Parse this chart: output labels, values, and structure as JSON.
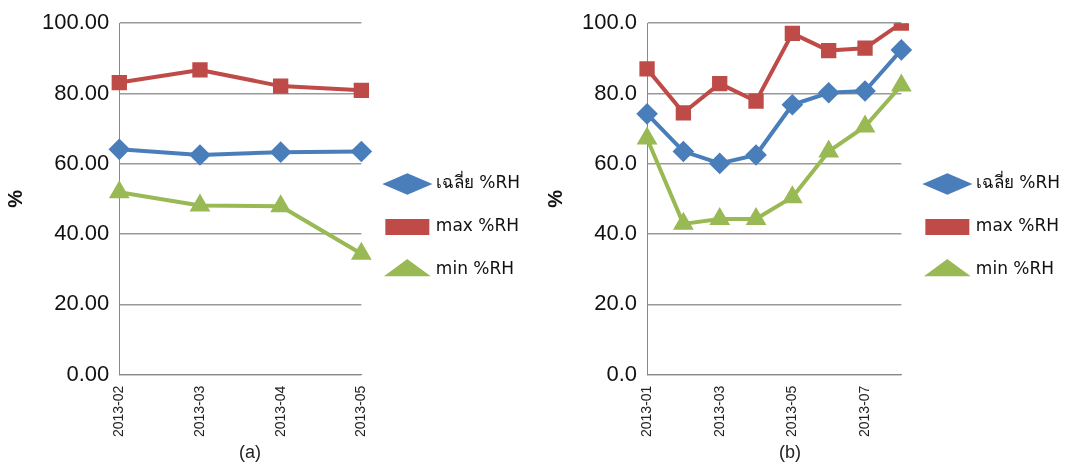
{
  "chart_data": [
    {
      "type": "line",
      "ylabel": "%",
      "annotations": [
        "(a)"
      ],
      "categories": [
        "2013-02",
        "2013-03",
        "2013-04",
        "2013-05"
      ],
      "series": [
        {
          "name": "เฉลี่ย %RH",
          "color": "#4a7ebb",
          "marker": "diamond",
          "values": [
            64.1,
            62.5,
            63.3,
            63.5
          ]
        },
        {
          "name": "max %RH",
          "color": "#be4b48",
          "marker": "square",
          "values": [
            83.1,
            86.7,
            82.1,
            80.9
          ]
        },
        {
          "name": "min %RH",
          "color": "#98b954",
          "marker": "triangle",
          "values": [
            51.9,
            48.1,
            47.9,
            34.4
          ]
        }
      ],
      "ylim": [
        0,
        100
      ],
      "yticks": [
        {
          "value": 0,
          "label": "0.00"
        },
        {
          "value": 20,
          "label": "20.00"
        },
        {
          "value": 40,
          "label": "40.00"
        },
        {
          "value": 60,
          "label": "60.00"
        },
        {
          "value": 80,
          "label": "80.00"
        },
        {
          "value": 100,
          "label": "100.00"
        }
      ],
      "grid": "y",
      "legend": "right",
      "line_style": "solid"
    },
    {
      "type": "line",
      "ylabel": "%",
      "annotations": [
        "(b)"
      ],
      "categories": [
        "2013-01",
        null,
        "2013-03",
        null,
        "2013-05",
        null,
        "2013-07",
        null
      ],
      "series": [
        {
          "name": "เฉลี่ย %RH",
          "color": "#4a7ebb",
          "marker": "diamond",
          "values": [
            74.2,
            63.5,
            60.1,
            62.5,
            76.8,
            80.2,
            80.7,
            92.4
          ]
        },
        {
          "name": "max %RH",
          "color": "#be4b48",
          "marker": "square",
          "values": [
            87,
            74.5,
            82.8,
            77.8,
            97.1,
            92.2,
            92.9,
            100
          ]
        },
        {
          "name": "min %RH",
          "color": "#98b954",
          "marker": "triangle",
          "values": [
            67.2,
            42.9,
            44.3,
            44.3,
            50.5,
            63.5,
            70.6,
            82.3
          ]
        }
      ],
      "ylim": [
        0,
        100
      ],
      "yticks": [
        {
          "value": 0,
          "label": "0.0"
        },
        {
          "value": 20,
          "label": "20.0"
        },
        {
          "value": 40,
          "label": "40.0"
        },
        {
          "value": 60,
          "label": "60.0"
        },
        {
          "value": 80,
          "label": "80.0"
        },
        {
          "value": 100,
          "label": "100.0"
        }
      ],
      "grid": "y",
      "legend": "right",
      "line_style": "solid"
    }
  ]
}
